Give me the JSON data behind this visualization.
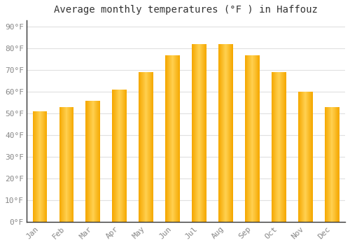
{
  "title": "Average monthly temperatures (°F ) in Haffouz",
  "months": [
    "Jan",
    "Feb",
    "Mar",
    "Apr",
    "May",
    "Jun",
    "Jul",
    "Aug",
    "Sep",
    "Oct",
    "Nov",
    "Dec"
  ],
  "values": [
    51,
    53,
    56,
    61,
    69,
    77,
    82,
    82,
    77,
    69,
    60,
    53
  ],
  "bar_color_center": "#FFD050",
  "bar_color_edge": "#F5A800",
  "background_color": "#FFFFFF",
  "grid_color": "#E0E0E0",
  "ytick_labels": [
    "0°F",
    "10°F",
    "20°F",
    "30°F",
    "40°F",
    "50°F",
    "60°F",
    "70°F",
    "80°F",
    "90°F"
  ],
  "ytick_values": [
    0,
    10,
    20,
    30,
    40,
    50,
    60,
    70,
    80,
    90
  ],
  "ylim": [
    0,
    93
  ],
  "spine_color": "#333333",
  "tick_color": "#888888",
  "title_fontsize": 10,
  "tick_fontsize": 8,
  "bar_width": 0.55
}
